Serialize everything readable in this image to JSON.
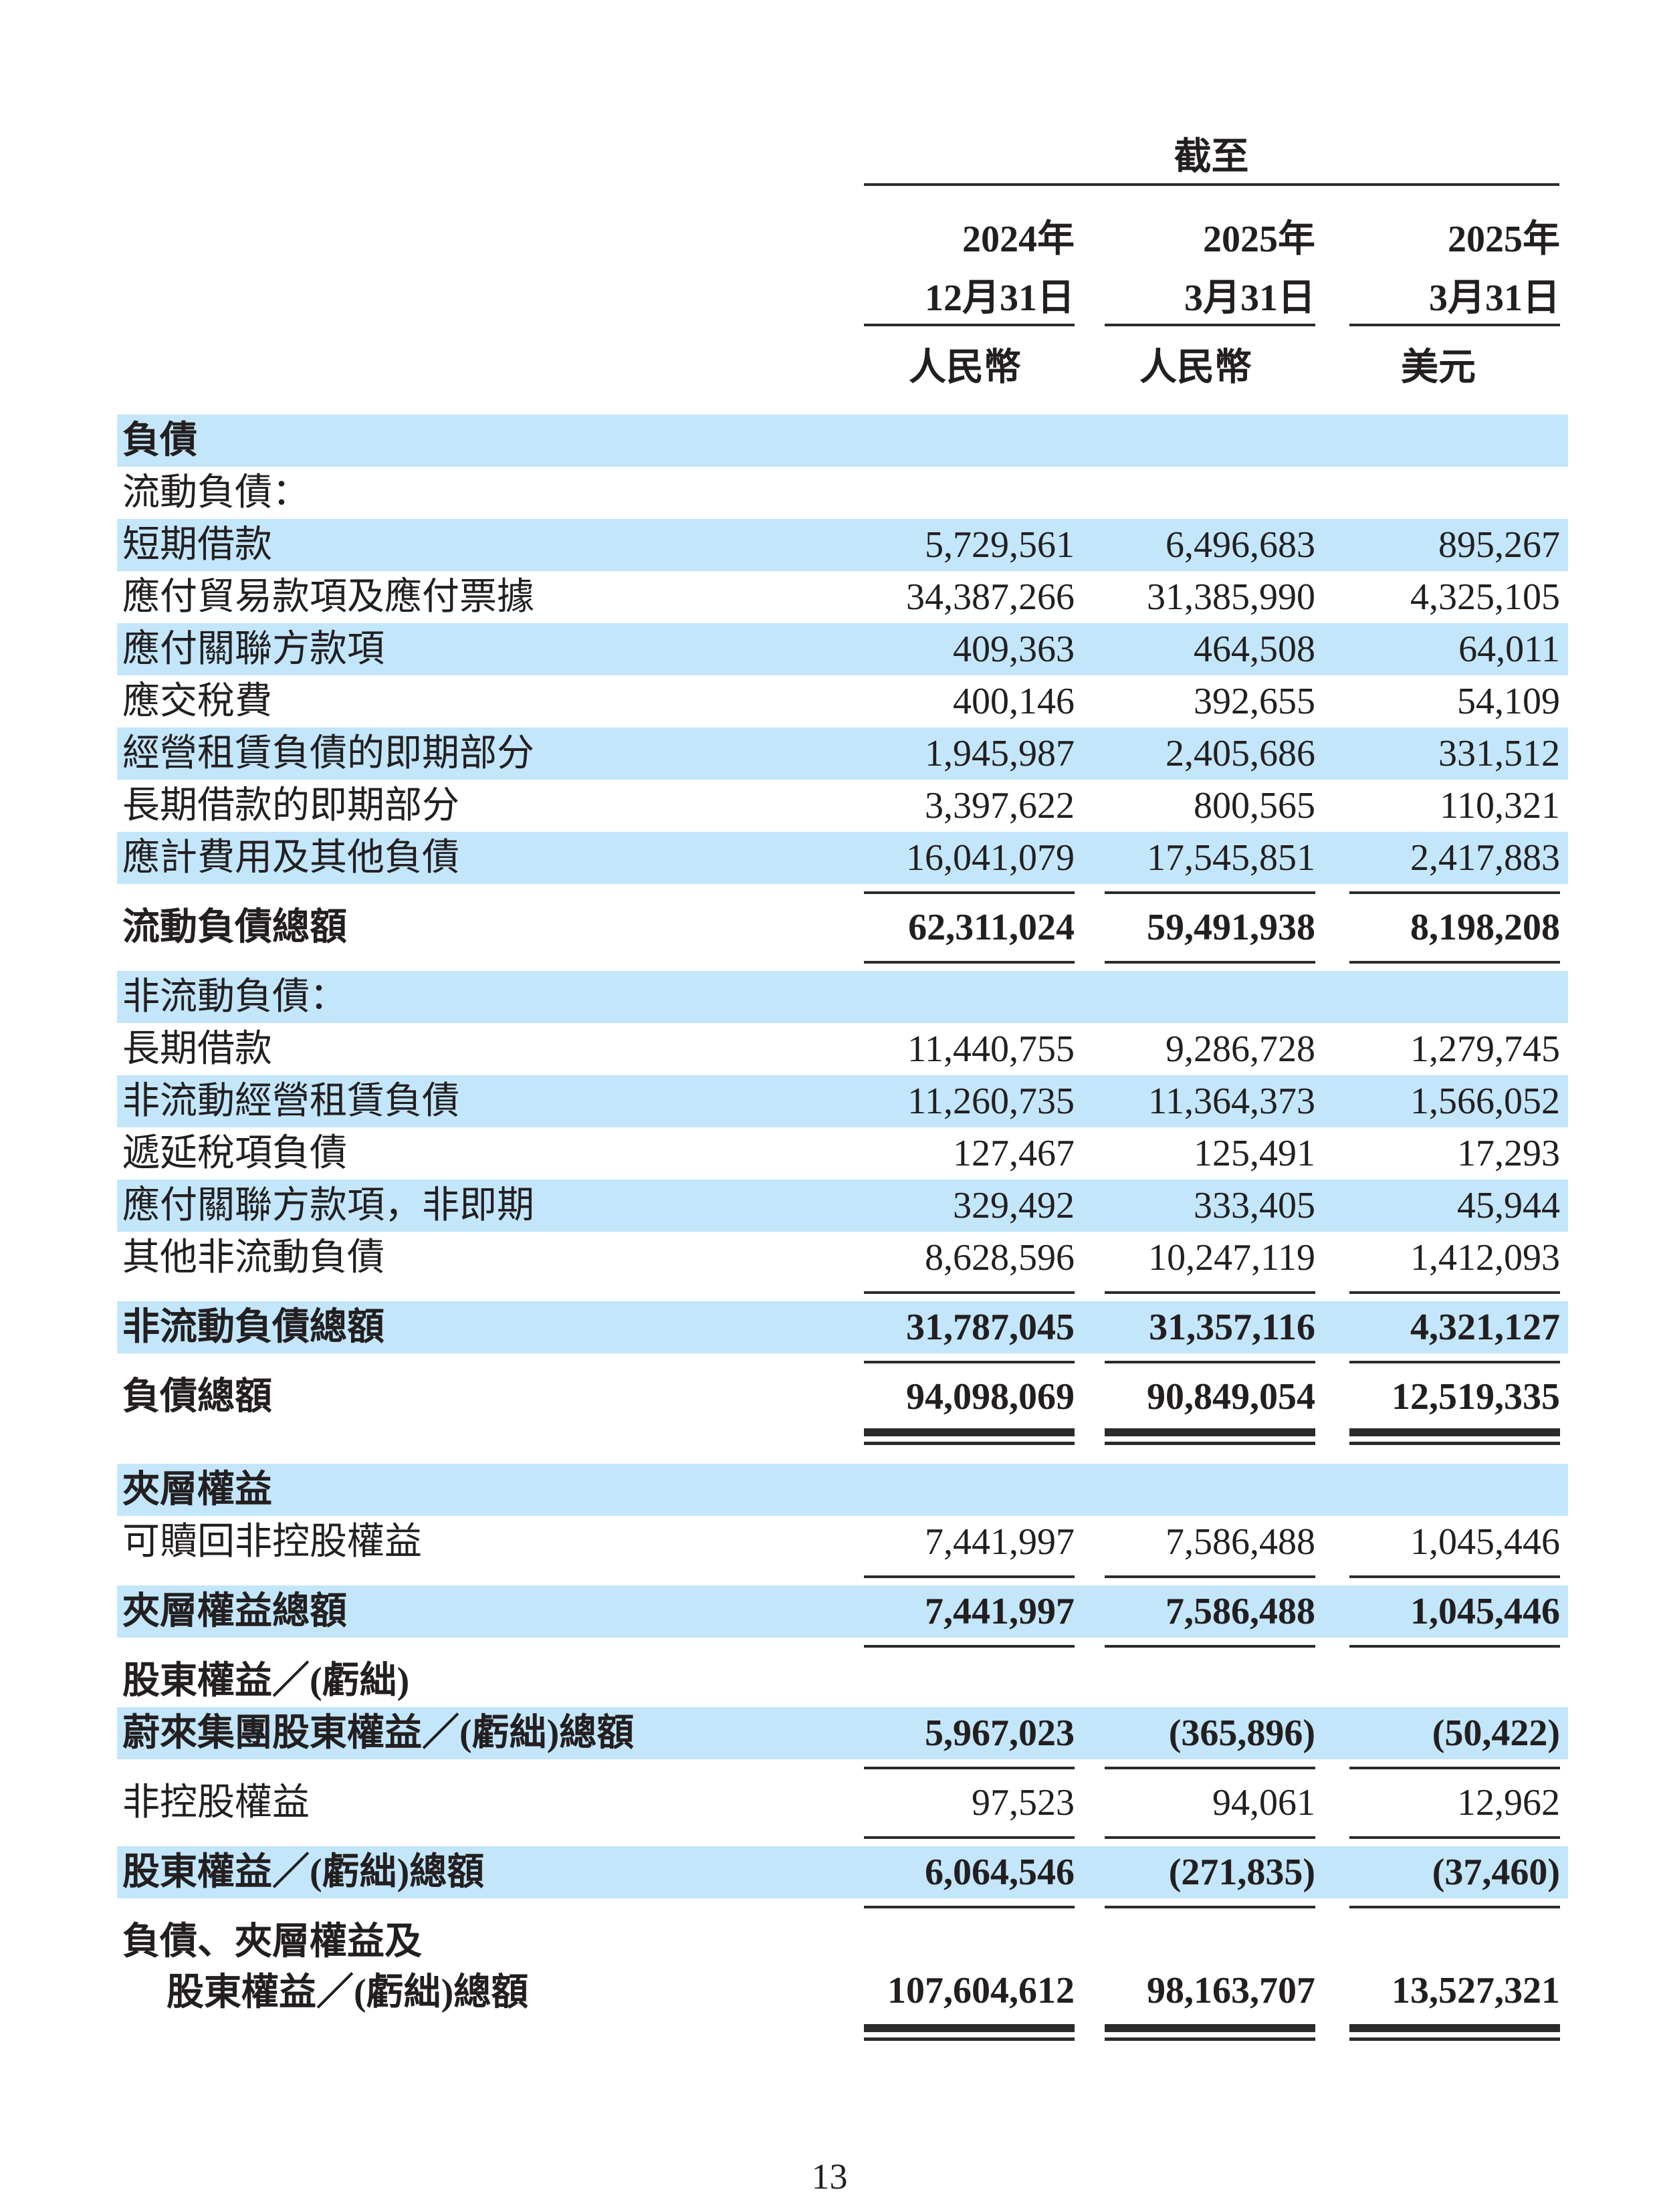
{
  "page": {
    "number": "13",
    "highlight_color": "#c3e6fa",
    "text_color": "#231f20"
  },
  "table": {
    "header": {
      "as_of_label": "截至",
      "columns": [
        {
          "year": "2024年",
          "date": "12月31日",
          "currency": "人民幣"
        },
        {
          "year": "2025年",
          "date": "3月31日",
          "currency": "人民幣"
        },
        {
          "year": "2025年",
          "date": "3月31日",
          "currency": "美元"
        }
      ]
    },
    "rows": [
      {
        "label": "負債",
        "bold": true,
        "highlight": true,
        "values": null,
        "rule_after": null
      },
      {
        "label": "流動負債：",
        "bold": false,
        "highlight": false,
        "values": null,
        "rule_after": null
      },
      {
        "label": "短期借款",
        "bold": false,
        "highlight": true,
        "values": [
          "5,729,561",
          "6,496,683",
          "895,267"
        ],
        "rule_after": null
      },
      {
        "label": "應付貿易款項及應付票據",
        "bold": false,
        "highlight": false,
        "values": [
          "34,387,266",
          "31,385,990",
          "4,325,105"
        ],
        "rule_after": null
      },
      {
        "label": "應付關聯方款項",
        "bold": false,
        "highlight": true,
        "values": [
          "409,363",
          "464,508",
          "64,011"
        ],
        "rule_after": null
      },
      {
        "label": "應交稅費",
        "bold": false,
        "highlight": false,
        "values": [
          "400,146",
          "392,655",
          "54,109"
        ],
        "rule_after": null
      },
      {
        "label": "經營租賃負債的即期部分",
        "bold": false,
        "highlight": true,
        "values": [
          "1,945,987",
          "2,405,686",
          "331,512"
        ],
        "rule_after": null
      },
      {
        "label": "長期借款的即期部分",
        "bold": false,
        "highlight": false,
        "values": [
          "3,397,622",
          "800,565",
          "110,321"
        ],
        "rule_after": null
      },
      {
        "label": "應計費用及其他負債",
        "bold": false,
        "highlight": true,
        "values": [
          "16,041,079",
          "17,545,851",
          "2,417,883"
        ],
        "rule_after": "single"
      },
      {
        "label": "流動負債總額",
        "bold": true,
        "highlight": false,
        "values": [
          "62,311,024",
          "59,491,938",
          "8,198,208"
        ],
        "rule_after": "single"
      },
      {
        "label": "非流動負債：",
        "bold": false,
        "highlight": true,
        "values": null,
        "rule_after": null
      },
      {
        "label": "長期借款",
        "bold": false,
        "highlight": false,
        "values": [
          "11,440,755",
          "9,286,728",
          "1,279,745"
        ],
        "rule_after": null
      },
      {
        "label": "非流動經營租賃負債",
        "bold": false,
        "highlight": true,
        "values": [
          "11,260,735",
          "11,364,373",
          "1,566,052"
        ],
        "rule_after": null
      },
      {
        "label": "遞延稅項負債",
        "bold": false,
        "highlight": false,
        "values": [
          "127,467",
          "125,491",
          "17,293"
        ],
        "rule_after": null
      },
      {
        "label": "應付關聯方款項，非即期",
        "bold": false,
        "highlight": true,
        "values": [
          "329,492",
          "333,405",
          "45,944"
        ],
        "rule_after": null
      },
      {
        "label": "其他非流動負債",
        "bold": false,
        "highlight": false,
        "values": [
          "8,628,596",
          "10,247,119",
          "1,412,093"
        ],
        "rule_after": "single"
      },
      {
        "label": "非流動負債總額",
        "bold": true,
        "highlight": true,
        "values": [
          "31,787,045",
          "31,357,116",
          "4,321,127"
        ],
        "rule_after": "single"
      },
      {
        "label": "負債總額",
        "bold": true,
        "highlight": false,
        "values": [
          "94,098,069",
          "90,849,054",
          "12,519,335"
        ],
        "rule_after": "double"
      },
      {
        "label": "夾層權益",
        "bold": true,
        "highlight": true,
        "values": null,
        "rule_after": null
      },
      {
        "label": "可贖回非控股權益",
        "bold": false,
        "highlight": false,
        "values": [
          "7,441,997",
          "7,586,488",
          "1,045,446"
        ],
        "rule_after": "single"
      },
      {
        "label": "夾層權益總額",
        "bold": true,
        "highlight": true,
        "values": [
          "7,441,997",
          "7,586,488",
          "1,045,446"
        ],
        "rule_after": "single"
      },
      {
        "label": "股東權益／(虧絀)",
        "bold": true,
        "highlight": false,
        "values": null,
        "rule_after": null
      },
      {
        "label": "蔚來集團股東權益／(虧絀)總額",
        "bold": true,
        "highlight": true,
        "values": [
          "5,967,023",
          "(365,896)",
          "(50,422)"
        ],
        "rule_after": "single"
      },
      {
        "label": "非控股權益",
        "bold": false,
        "highlight": false,
        "values": [
          "97,523",
          "94,061",
          "12,962"
        ],
        "rule_after": "single"
      },
      {
        "label": "股東權益／(虧絀)總額",
        "bold": true,
        "highlight": true,
        "values": [
          "6,064,546",
          "(271,835)",
          "(37,460)"
        ],
        "rule_after": "single"
      },
      {
        "label_lines": [
          "負債、夾層權益及",
          "股東權益／(虧絀)總額"
        ],
        "bold": true,
        "highlight": false,
        "values": [
          "107,604,612",
          "98,163,707",
          "13,527,321"
        ],
        "rule_after": "double"
      }
    ]
  }
}
